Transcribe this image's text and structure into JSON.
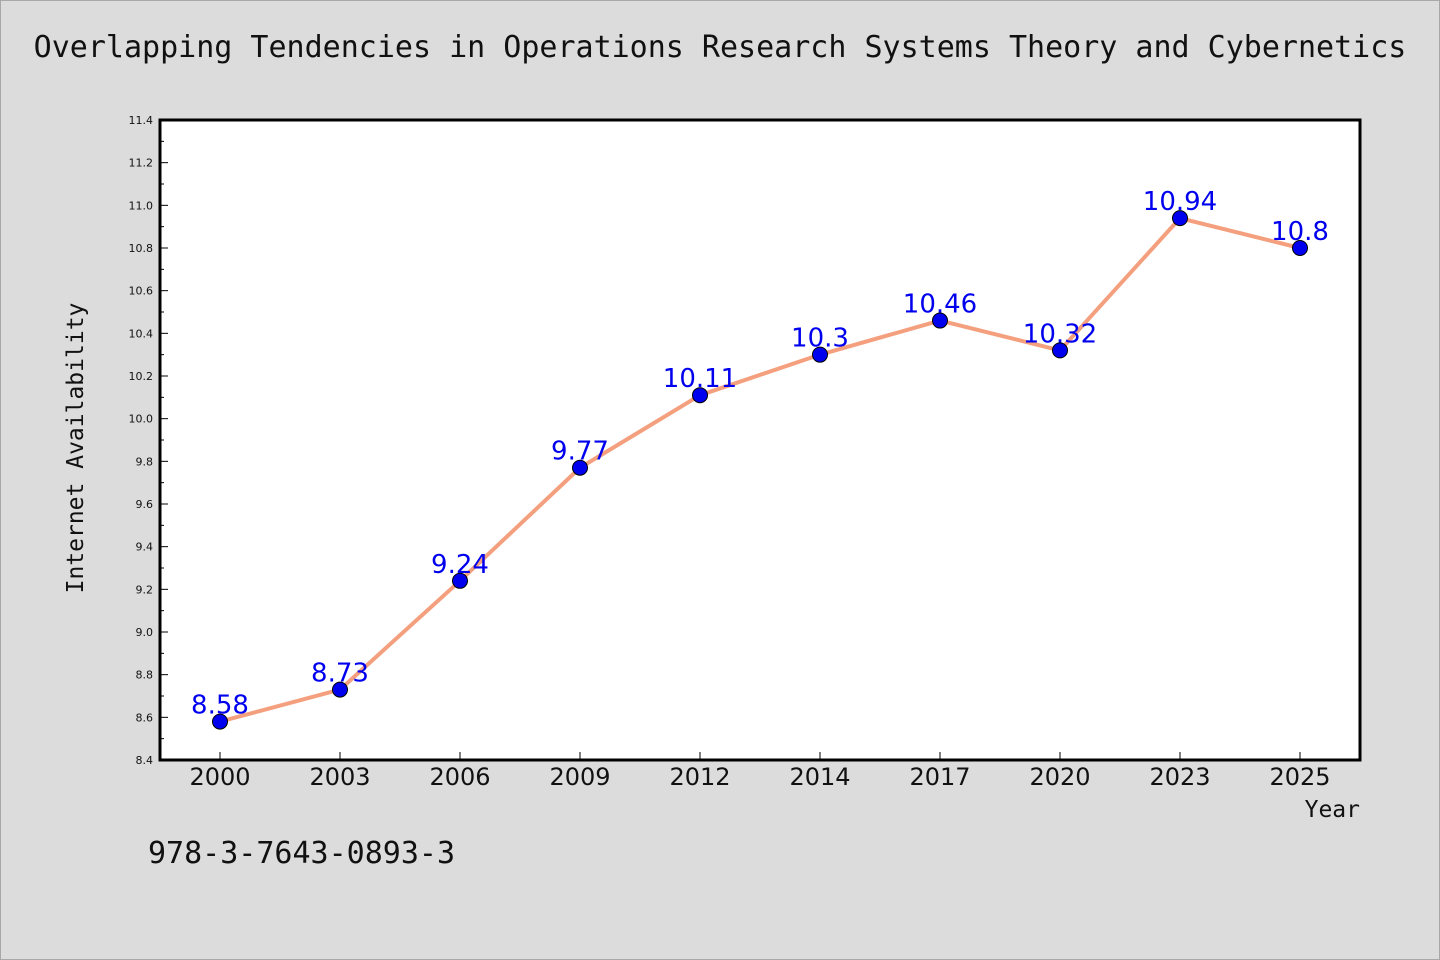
{
  "chart_data": {
    "type": "line",
    "title": "Overlapping Tendencies in Operations Research Systems Theory and Cybernetics",
    "xlabel": "Year",
    "ylabel": "Internet Availability",
    "categories": [
      "2000",
      "2003",
      "2006",
      "2009",
      "2012",
      "2014",
      "2017",
      "2020",
      "2023",
      "2025"
    ],
    "series": [
      {
        "values": [
          8.58,
          8.73,
          9.24,
          9.77,
          10.11,
          10.3,
          10.46,
          10.32,
          10.94,
          10.8
        ],
        "value_labels": [
          "8.58",
          "8.73",
          "9.24",
          "9.77",
          "10.11",
          "10.3",
          "10.46",
          "10.32",
          "10.94",
          "10.8"
        ],
        "line_color": "#f4a07e",
        "marker_color": "#0000ee"
      }
    ],
    "ylim": [
      8.4,
      11.4
    ],
    "yticks": [
      "8.4",
      "8.6",
      "8.8",
      "9.0",
      "9.2",
      "9.4",
      "9.6",
      "9.8",
      "10.0",
      "10.2",
      "10.4",
      "10.6",
      "10.8",
      "11.0",
      "11.2",
      "11.4"
    ],
    "grid": false,
    "legend": "none"
  },
  "annotation": {
    "isbn": "978-3-7643-0893-3"
  },
  "colors": {
    "background": "#dcdcdc",
    "plot_background": "#ffffff",
    "axis": "#000000"
  }
}
